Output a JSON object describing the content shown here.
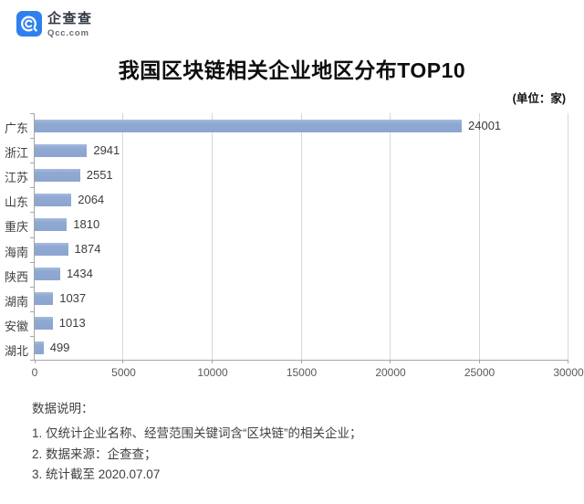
{
  "brand": {
    "name": "企查查",
    "domain": "Qcc.com",
    "logo_color": "#2E80EE"
  },
  "title": "我国区块链相关企业地区分布TOP10",
  "unit_label": "(单位：家)",
  "chart_data": {
    "type": "bar",
    "orientation": "horizontal",
    "title": "我国区块链相关企业地区分布TOP10",
    "unit": "家",
    "categories": [
      "广东",
      "浙江",
      "江苏",
      "山东",
      "重庆",
      "海南",
      "陕西",
      "湖南",
      "安徽",
      "湖北"
    ],
    "values": [
      24001,
      2941,
      2551,
      2064,
      1810,
      1874,
      1434,
      1037,
      1013,
      499
    ],
    "xlim": [
      0,
      30000
    ],
    "xticks": [
      0,
      5000,
      10000,
      15000,
      20000,
      25000,
      30000
    ],
    "grid": true,
    "value_labels": true,
    "bar_color": "#8FA9D2",
    "gridline_color": "#D7D7D7",
    "axis_color": "#A6A6A6"
  },
  "notes": {
    "heading": "数据说明：",
    "items": [
      "1. 仅统计企业名称、经营范围关键词含“区块链”的相关企业；",
      "2. 数据来源：企查查；",
      "3. 统计截至 2020.07.07"
    ]
  }
}
